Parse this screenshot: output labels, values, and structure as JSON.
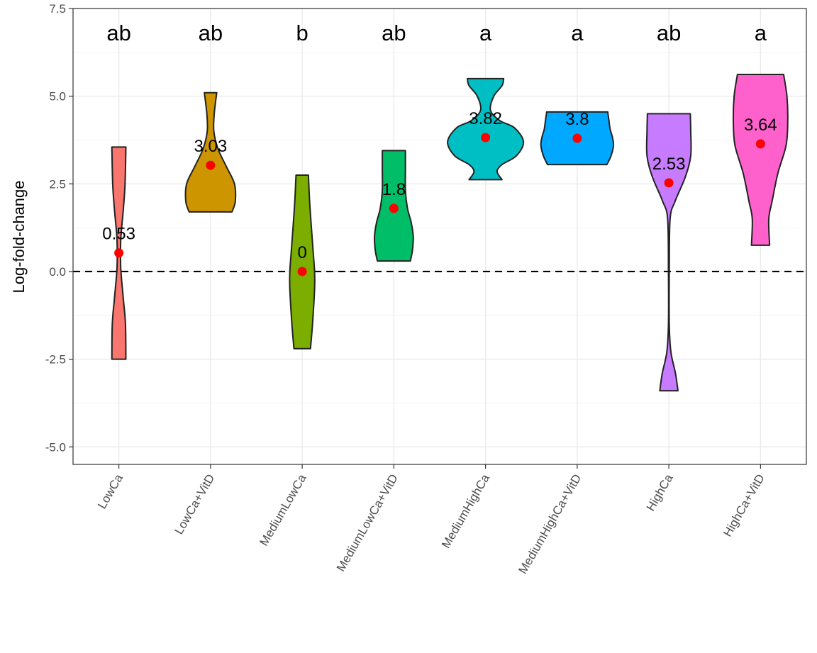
{
  "chart_data": {
    "type": "violin",
    "ylabel": "Log-fold-change",
    "xlabel": "",
    "ylim": [
      -5.5,
      7.5
    ],
    "yticks": [
      {
        "value": 7.5,
        "label": "7.5"
      },
      {
        "value": 5.0,
        "label": "5.0"
      },
      {
        "value": 2.5,
        "label": "2.5"
      },
      {
        "value": 0.0,
        "label": "0.0"
      },
      {
        "value": -2.5,
        "label": "-2.5"
      },
      {
        "value": -5.0,
        "label": "-5.0"
      }
    ],
    "reference_line": {
      "y": 0,
      "style": "dashed"
    },
    "grid": true,
    "theme": "bw",
    "categories": [
      "LowCa",
      "LowCa+VitD",
      "MediumLowCa",
      "MediumLowCa+VitD",
      "MediumHighCa",
      "MediumHighCa+VitD",
      "HighCa",
      "HighCa+VitD"
    ],
    "colors": [
      "#F8766D",
      "#CD9600",
      "#7CAE00",
      "#00BE67",
      "#00BFC4",
      "#00A9FF",
      "#C77CFF",
      "#FF61CC"
    ],
    "medians": [
      0.53,
      3.03,
      0,
      1.8,
      3.82,
      3.8,
      2.53,
      3.64
    ],
    "median_labels": [
      "0.53",
      "3.03",
      "0",
      "1.8",
      "3.82",
      "3.8",
      "2.53",
      "3.64"
    ],
    "significance_letters": [
      "ab",
      "ab",
      "b",
      "ab",
      "a",
      "a",
      "ab",
      "a"
    ],
    "violins": [
      {
        "min": -2.5,
        "max": 3.55,
        "profile": [
          [
            -2.5,
            0.17
          ],
          [
            -1.5,
            0.16
          ],
          [
            -0.8,
            0.11
          ],
          [
            0.0,
            0.05
          ],
          [
            0.5,
            0.04
          ],
          [
            1.0,
            0.05
          ],
          [
            1.8,
            0.11
          ],
          [
            2.5,
            0.15
          ],
          [
            3.55,
            0.17
          ]
        ]
      },
      {
        "min": 1.7,
        "max": 5.1,
        "profile": [
          [
            1.7,
            0.52
          ],
          [
            2.0,
            0.6
          ],
          [
            2.5,
            0.58
          ],
          [
            3.0,
            0.38
          ],
          [
            3.5,
            0.18
          ],
          [
            4.0,
            0.08
          ],
          [
            4.5,
            0.09
          ],
          [
            5.1,
            0.15
          ]
        ]
      },
      {
        "min": -2.2,
        "max": 2.75,
        "profile": [
          [
            -2.2,
            0.2
          ],
          [
            -1.5,
            0.25
          ],
          [
            -0.5,
            0.3
          ],
          [
            0.0,
            0.3
          ],
          [
            0.5,
            0.27
          ],
          [
            1.3,
            0.22
          ],
          [
            2.0,
            0.18
          ],
          [
            2.75,
            0.15
          ]
        ]
      },
      {
        "min": 0.3,
        "max": 3.45,
        "profile": [
          [
            0.3,
            0.4
          ],
          [
            0.6,
            0.45
          ],
          [
            1.0,
            0.47
          ],
          [
            1.4,
            0.42
          ],
          [
            1.8,
            0.33
          ],
          [
            2.3,
            0.28
          ],
          [
            2.9,
            0.28
          ],
          [
            3.45,
            0.28
          ]
        ]
      },
      {
        "min": 2.62,
        "max": 5.5,
        "profile": [
          [
            2.62,
            0.4
          ],
          [
            2.85,
            0.28
          ],
          [
            3.05,
            0.4
          ],
          [
            3.3,
            0.75
          ],
          [
            3.7,
            0.92
          ],
          [
            4.1,
            0.7
          ],
          [
            4.3,
            0.35
          ],
          [
            4.6,
            0.12
          ],
          [
            5.0,
            0.2
          ],
          [
            5.3,
            0.4
          ],
          [
            5.5,
            0.44
          ]
        ]
      },
      {
        "min": 3.05,
        "max": 4.55,
        "profile": [
          [
            3.05,
            0.72
          ],
          [
            3.3,
            0.82
          ],
          [
            3.6,
            0.88
          ],
          [
            3.85,
            0.85
          ],
          [
            4.05,
            0.8
          ],
          [
            4.3,
            0.77
          ],
          [
            4.55,
            0.74
          ]
        ]
      },
      {
        "min": -3.4,
        "max": 4.5,
        "profile": [
          [
            -3.4,
            0.22
          ],
          [
            -2.9,
            0.16
          ],
          [
            -2.3,
            0.05
          ],
          [
            -1.5,
            0.01
          ],
          [
            0.0,
            0.01
          ],
          [
            1.5,
            0.03
          ],
          [
            2.0,
            0.15
          ],
          [
            2.7,
            0.4
          ],
          [
            3.3,
            0.53
          ],
          [
            4.0,
            0.53
          ],
          [
            4.5,
            0.52
          ]
        ]
      },
      {
        "min": 0.75,
        "max": 5.62,
        "profile": [
          [
            0.75,
            0.22
          ],
          [
            1.5,
            0.2
          ],
          [
            2.0,
            0.28
          ],
          [
            2.8,
            0.42
          ],
          [
            3.6,
            0.62
          ],
          [
            4.3,
            0.66
          ],
          [
            5.0,
            0.64
          ],
          [
            5.62,
            0.56
          ]
        ]
      }
    ]
  }
}
